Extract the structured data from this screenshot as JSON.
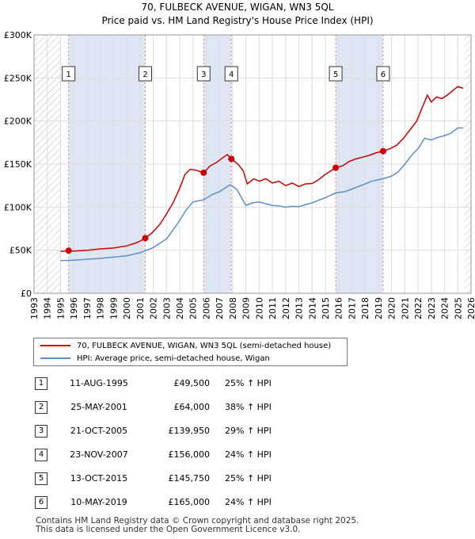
{
  "chart_data": {
    "type": "line",
    "title": "70, FULBECK AVENUE, WIGAN, WN3 5QL",
    "subtitle": "Price paid vs. HM Land Registry's House Price Index (HPI)",
    "ylim": [
      0,
      300000
    ],
    "xlim": [
      1993,
      2026
    ],
    "y_ticks": [
      {
        "value": 0,
        "label": "£0"
      },
      {
        "value": 50000,
        "label": "£50K"
      },
      {
        "value": 100000,
        "label": "£100K"
      },
      {
        "value": 150000,
        "label": "£150K"
      },
      {
        "value": 200000,
        "label": "£200K"
      },
      {
        "value": 250000,
        "label": "£250K"
      },
      {
        "value": 300000,
        "label": "£300K"
      }
    ],
    "x_ticks": [
      "1993",
      "1994",
      "1995",
      "1996",
      "1997",
      "1998",
      "1999",
      "2000",
      "2001",
      "2002",
      "2003",
      "2004",
      "2005",
      "2006",
      "2007",
      "2008",
      "2009",
      "2010",
      "2011",
      "2012",
      "2013",
      "2014",
      "2015",
      "2016",
      "2017",
      "2018",
      "2019",
      "2020",
      "2021",
      "2022",
      "2023",
      "2024",
      "2025",
      "2026"
    ],
    "data_start": 1995.0,
    "data_end": 2025.5,
    "colors": {
      "property": "#cc0000",
      "hpi": "#5b8fc9",
      "shade": "#dde6f2",
      "hatch": "#bbbbbb",
      "grid": "#dddddd",
      "sale_marker_line": "#e08080"
    },
    "series": [
      {
        "name": "70, FULBECK AVENUE, WIGAN, WN3 5QL (semi-detached house)",
        "points": [
          [
            1995.0,
            48500
          ],
          [
            1995.61,
            49500
          ],
          [
            1996.0,
            49000
          ],
          [
            1997.0,
            50000
          ],
          [
            1998.0,
            51500
          ],
          [
            1999.0,
            52500
          ],
          [
            2000.0,
            55000
          ],
          [
            2000.8,
            59000
          ],
          [
            2001.4,
            64000
          ],
          [
            2001.9,
            70000
          ],
          [
            2002.5,
            80000
          ],
          [
            2003.0,
            92000
          ],
          [
            2003.5,
            105000
          ],
          [
            2004.0,
            122000
          ],
          [
            2004.4,
            138000
          ],
          [
            2004.8,
            144000
          ],
          [
            2005.2,
            143000
          ],
          [
            2005.81,
            139950
          ],
          [
            2006.3,
            148000
          ],
          [
            2006.8,
            152000
          ],
          [
            2007.3,
            158000
          ],
          [
            2007.6,
            161000
          ],
          [
            2007.9,
            156000
          ],
          [
            2008.4,
            150000
          ],
          [
            2008.8,
            142000
          ],
          [
            2009.1,
            127000
          ],
          [
            2009.6,
            133000
          ],
          [
            2010.0,
            130000
          ],
          [
            2010.5,
            133000
          ],
          [
            2011.0,
            128000
          ],
          [
            2011.5,
            130000
          ],
          [
            2012.0,
            125000
          ],
          [
            2012.5,
            128000
          ],
          [
            2013.0,
            124000
          ],
          [
            2013.5,
            127000
          ],
          [
            2014.0,
            127500
          ],
          [
            2014.5,
            132000
          ],
          [
            2015.0,
            138000
          ],
          [
            2015.78,
            145750
          ],
          [
            2016.3,
            148000
          ],
          [
            2016.8,
            153000
          ],
          [
            2017.3,
            156000
          ],
          [
            2017.8,
            158000
          ],
          [
            2018.3,
            160000
          ],
          [
            2018.8,
            163000
          ],
          [
            2019.36,
            165000
          ],
          [
            2019.9,
            168000
          ],
          [
            2020.4,
            172000
          ],
          [
            2020.9,
            180000
          ],
          [
            2021.4,
            190000
          ],
          [
            2021.9,
            200000
          ],
          [
            2022.3,
            215000
          ],
          [
            2022.7,
            230000
          ],
          [
            2023.0,
            222000
          ],
          [
            2023.4,
            228000
          ],
          [
            2023.8,
            226000
          ],
          [
            2024.2,
            230000
          ],
          [
            2024.6,
            235000
          ],
          [
            2025.0,
            240000
          ],
          [
            2025.4,
            238000
          ]
        ]
      },
      {
        "name": "HPI: Average price, semi-detached house, Wigan",
        "points": [
          [
            1995.0,
            38000
          ],
          [
            1996.0,
            38500
          ],
          [
            1997.0,
            39500
          ],
          [
            1998.0,
            40500
          ],
          [
            1999.0,
            42000
          ],
          [
            2000.0,
            43500
          ],
          [
            2001.0,
            47000
          ],
          [
            2002.0,
            53000
          ],
          [
            2003.0,
            63000
          ],
          [
            2003.8,
            80000
          ],
          [
            2004.5,
            97000
          ],
          [
            2005.0,
            106000
          ],
          [
            2005.8,
            108500
          ],
          [
            2006.5,
            115000
          ],
          [
            2007.0,
            118000
          ],
          [
            2007.8,
            126000
          ],
          [
            2008.3,
            121000
          ],
          [
            2009.0,
            102000
          ],
          [
            2009.5,
            105000
          ],
          [
            2010.0,
            106000
          ],
          [
            2010.5,
            104000
          ],
          [
            2011.0,
            102000
          ],
          [
            2011.5,
            101500
          ],
          [
            2012.0,
            100000
          ],
          [
            2012.5,
            101000
          ],
          [
            2013.0,
            100500
          ],
          [
            2013.5,
            103000
          ],
          [
            2014.0,
            105000
          ],
          [
            2014.5,
            108000
          ],
          [
            2015.0,
            111000
          ],
          [
            2015.78,
            116500
          ],
          [
            2016.5,
            118000
          ],
          [
            2017.0,
            121000
          ],
          [
            2017.5,
            124000
          ],
          [
            2018.0,
            127000
          ],
          [
            2018.5,
            130000
          ],
          [
            2019.36,
            133000
          ],
          [
            2020.0,
            136000
          ],
          [
            2020.5,
            141000
          ],
          [
            2021.0,
            150000
          ],
          [
            2021.5,
            160000
          ],
          [
            2022.0,
            168000
          ],
          [
            2022.5,
            180000
          ],
          [
            2023.0,
            178000
          ],
          [
            2023.5,
            181000
          ],
          [
            2024.0,
            183000
          ],
          [
            2024.5,
            186000
          ],
          [
            2025.0,
            192000
          ],
          [
            2025.4,
            192000
          ]
        ]
      }
    ],
    "sales": [
      {
        "n": "1",
        "year": 1995.61,
        "price": 49500,
        "date": "11-AUG-1995",
        "price_label": "£49,500",
        "hpi": "25% ↑ HPI"
      },
      {
        "n": "2",
        "year": 2001.4,
        "price": 64000,
        "date": "25-MAY-2001",
        "price_label": "£64,000",
        "hpi": "38% ↑ HPI"
      },
      {
        "n": "3",
        "year": 2005.81,
        "price": 139950,
        "date": "21-OCT-2005",
        "price_label": "£139,950",
        "hpi": "29% ↑ HPI"
      },
      {
        "n": "4",
        "year": 2007.9,
        "price": 156000,
        "date": "23-NOV-2007",
        "price_label": "£156,000",
        "hpi": "24% ↑ HPI"
      },
      {
        "n": "5",
        "year": 2015.78,
        "price": 145750,
        "date": "13-OCT-2015",
        "price_label": "£145,750",
        "hpi": "25% ↑ HPI"
      },
      {
        "n": "6",
        "year": 2019.36,
        "price": 165000,
        "date": "10-MAY-2019",
        "price_label": "£165,000",
        "hpi": "24% ↑ HPI"
      }
    ]
  },
  "legend": {
    "property_label": "70, FULBECK AVENUE, WIGAN, WN3 5QL (semi-detached house)",
    "hpi_label": "HPI: Average price, semi-detached house, Wigan"
  },
  "footer": {
    "line1": "Contains HM Land Registry data © Crown copyright and database right 2025.",
    "line2": "This data is licensed under the Open Government Licence v3.0."
  }
}
